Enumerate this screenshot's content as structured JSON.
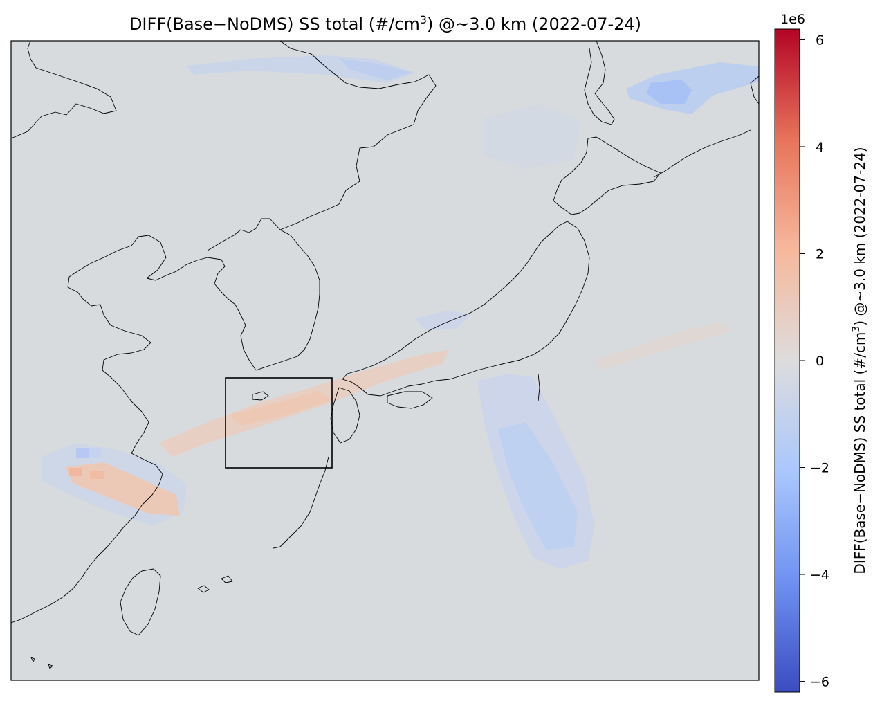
{
  "title": {
    "prefix": "DIFF(Base−NoDMS) SS total (#/cm",
    "sup": "3",
    "suffix": ") @~3.0 km (2022-07-24)"
  },
  "colorbar": {
    "label_prefix": "DIFF(Base−NoDMS) SS total (#/cm",
    "label_sup": "3",
    "label_suffix": ") @~3.0 km (2022-07-24)",
    "offset_text": "1e6",
    "colormap": "coolwarm",
    "vmin": -6.2,
    "vmax": 6.2,
    "ticks": [
      {
        "value": 6,
        "label": "6"
      },
      {
        "value": 4,
        "label": "4"
      },
      {
        "value": 2,
        "label": "2"
      },
      {
        "value": 0,
        "label": "0"
      },
      {
        "value": -2,
        "label": "−2"
      },
      {
        "value": -4,
        "label": "−4"
      },
      {
        "value": -6,
        "label": "−6"
      }
    ],
    "colors": [
      "#3b4cc0",
      "#6f91f2",
      "#aac7fd",
      "#dddcdc",
      "#f7b89c",
      "#e7745b",
      "#b40426"
    ]
  },
  "map": {
    "background_color": "#d8dbde",
    "coastline_color": "#000000",
    "highlight_box": "study region"
  }
}
